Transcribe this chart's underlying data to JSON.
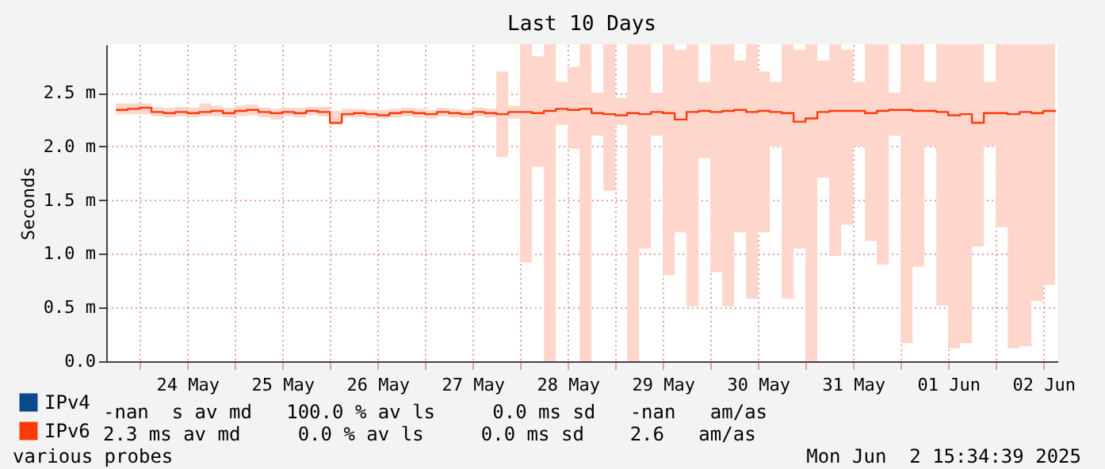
{
  "chart_data": {
    "type": "step",
    "title": "Last 10 Days",
    "ylabel": "Seconds",
    "x": [
      "2025-05-23T18:00",
      "2025-05-23T21:00",
      "2025-05-24T00:00",
      "2025-05-24T03:00",
      "2025-05-24T06:00",
      "2025-05-24T09:00",
      "2025-05-24T12:00",
      "2025-05-24T15:00",
      "2025-05-24T18:00",
      "2025-05-24T21:00",
      "2025-05-25T00:00",
      "2025-05-25T03:00",
      "2025-05-25T06:00",
      "2025-05-25T09:00",
      "2025-05-25T12:00",
      "2025-05-25T15:00",
      "2025-05-25T18:00",
      "2025-05-25T21:00",
      "2025-05-26T00:00",
      "2025-05-26T03:00",
      "2025-05-26T06:00",
      "2025-05-26T09:00",
      "2025-05-26T12:00",
      "2025-05-26T15:00",
      "2025-05-26T18:00",
      "2025-05-26T21:00",
      "2025-05-27T00:00",
      "2025-05-27T03:00",
      "2025-05-27T06:00",
      "2025-05-27T09:00",
      "2025-05-27T12:00",
      "2025-05-27T15:00",
      "2025-05-27T18:00",
      "2025-05-27T21:00",
      "2025-05-28T00:00",
      "2025-05-28T03:00",
      "2025-05-28T06:00",
      "2025-05-28T09:00",
      "2025-05-28T12:00",
      "2025-05-28T15:00",
      "2025-05-28T18:00",
      "2025-05-28T21:00",
      "2025-05-29T00:00",
      "2025-05-29T03:00",
      "2025-05-29T06:00",
      "2025-05-29T09:00",
      "2025-05-29T12:00",
      "2025-05-29T15:00",
      "2025-05-29T18:00",
      "2025-05-29T21:00",
      "2025-05-30T00:00",
      "2025-05-30T03:00",
      "2025-05-30T06:00",
      "2025-05-30T09:00",
      "2025-05-30T12:00",
      "2025-05-30T15:00",
      "2025-05-30T18:00",
      "2025-05-30T21:00",
      "2025-05-31T00:00",
      "2025-05-31T03:00",
      "2025-05-31T06:00",
      "2025-05-31T09:00",
      "2025-05-31T12:00",
      "2025-05-31T15:00",
      "2025-05-31T18:00",
      "2025-05-31T21:00",
      "2025-06-01T00:00",
      "2025-06-01T03:00",
      "2025-06-01T06:00",
      "2025-06-01T09:00",
      "2025-06-01T12:00",
      "2025-06-01T15:00",
      "2025-06-01T18:00",
      "2025-06-01T21:00",
      "2025-06-02T00:00",
      "2025-06-02T03:00",
      "2025-06-02T06:00",
      "2025-06-02T09:00",
      "2025-06-02T12:00",
      "2025-06-02T15:00"
    ],
    "series": [
      {
        "name": "IPv4",
        "color": "#0a4a8a",
        "values": [
          null,
          null,
          null,
          null,
          null,
          null,
          null,
          null,
          null,
          null,
          null,
          null,
          null,
          null,
          null,
          null,
          null,
          null,
          null,
          null,
          null,
          null,
          null,
          null,
          null,
          null,
          null,
          null,
          null,
          null,
          null,
          null,
          null,
          null,
          null,
          null,
          null,
          null,
          null,
          null,
          null,
          null,
          null,
          null,
          null,
          null,
          null,
          null,
          null,
          null,
          null,
          null,
          null,
          null,
          null,
          null,
          null,
          null,
          null,
          null,
          null,
          null,
          null,
          null,
          null,
          null,
          null,
          null,
          null,
          null,
          null,
          null,
          null,
          null,
          null,
          null,
          null,
          null,
          null,
          null
        ]
      },
      {
        "name": "IPv6",
        "color": "#ff3a0a",
        "values": [
          2.34,
          2.35,
          2.36,
          2.32,
          2.31,
          2.32,
          2.31,
          2.32,
          2.33,
          2.31,
          2.33,
          2.34,
          2.32,
          2.31,
          2.32,
          2.31,
          2.33,
          2.32,
          2.22,
          2.3,
          2.31,
          2.3,
          2.29,
          2.31,
          2.32,
          2.31,
          2.3,
          2.32,
          2.31,
          2.3,
          2.32,
          2.31,
          2.3,
          2.32,
          2.32,
          2.31,
          2.33,
          2.35,
          2.34,
          2.35,
          2.31,
          2.3,
          2.29,
          2.31,
          2.3,
          2.32,
          2.31,
          2.25,
          2.32,
          2.33,
          2.32,
          2.33,
          2.34,
          2.32,
          2.33,
          2.32,
          2.31,
          2.23,
          2.26,
          2.32,
          2.33,
          2.33,
          2.33,
          2.31,
          2.33,
          2.34,
          2.34,
          2.33,
          2.33,
          2.32,
          2.29,
          2.3,
          2.22,
          2.31,
          2.31,
          2.3,
          2.32,
          2.31,
          2.33,
          2.32
        ],
        "lower": [
          2.3,
          2.3,
          2.3,
          2.28,
          2.27,
          2.28,
          2.27,
          2.28,
          2.28,
          2.27,
          2.28,
          2.29,
          2.27,
          2.25,
          2.28,
          2.27,
          2.29,
          2.28,
          2.2,
          2.27,
          2.27,
          2.26,
          2.26,
          2.27,
          2.28,
          2.27,
          2.26,
          2.28,
          2.27,
          2.26,
          2.28,
          2.27,
          1.9,
          2.26,
          0.92,
          1.81,
          0,
          2.2,
          1.98,
          0,
          2.1,
          1.59,
          2.2,
          0,
          1.05,
          2.1,
          0.8,
          1.2,
          0.51,
          1.89,
          0.83,
          0.51,
          1.2,
          0.58,
          1.2,
          2.0,
          0.58,
          1.05,
          0,
          1.71,
          0.98,
          1.27,
          2.0,
          1.12,
          0.9,
          2.1,
          0.17,
          0.88,
          2.0,
          0.52,
          0.12,
          0.17,
          1.07,
          2.0,
          1.25,
          0.12,
          0.14,
          0.56,
          0.71,
          1.97
        ],
        "upper": [
          2.4,
          2.4,
          2.4,
          2.37,
          2.36,
          2.37,
          2.36,
          2.4,
          2.38,
          2.36,
          2.38,
          2.39,
          2.36,
          2.35,
          2.36,
          2.36,
          2.37,
          2.37,
          2.33,
          2.35,
          2.35,
          2.34,
          2.34,
          2.35,
          2.36,
          2.35,
          2.34,
          2.36,
          2.35,
          2.34,
          2.36,
          2.35,
          2.7,
          2.38,
          2.95,
          2.84,
          2.95,
          2.6,
          2.74,
          2.95,
          2.5,
          2.95,
          2.45,
          2.95,
          2.95,
          2.5,
          2.95,
          2.9,
          2.95,
          2.6,
          2.95,
          2.95,
          2.8,
          2.95,
          2.7,
          2.6,
          2.95,
          2.9,
          2.95,
          2.8,
          2.95,
          2.9,
          2.6,
          2.95,
          2.95,
          2.5,
          2.95,
          2.95,
          2.6,
          2.95,
          2.95,
          2.95,
          2.95,
          2.6,
          2.95,
          2.95,
          2.95,
          2.95,
          2.95,
          2.6
        ]
      }
    ],
    "xlim": [
      "2025-05-23T15:34",
      "2025-06-02T15:34"
    ],
    "xticks": [
      {
        "value": "2025-05-24T00:00",
        "label": null
      },
      {
        "value": "2025-05-24T12:00",
        "label": "24 May"
      },
      {
        "value": "2025-05-25T00:00",
        "label": null
      },
      {
        "value": "2025-05-25T12:00",
        "label": "25 May"
      },
      {
        "value": "2025-05-26T00:00",
        "label": null
      },
      {
        "value": "2025-05-26T12:00",
        "label": "26 May"
      },
      {
        "value": "2025-05-27T00:00",
        "label": null
      },
      {
        "value": "2025-05-27T12:00",
        "label": "27 May"
      },
      {
        "value": "2025-05-28T00:00",
        "label": null
      },
      {
        "value": "2025-05-28T12:00",
        "label": "28 May"
      },
      {
        "value": "2025-05-29T00:00",
        "label": null
      },
      {
        "value": "2025-05-29T12:00",
        "label": "29 May"
      },
      {
        "value": "2025-05-30T00:00",
        "label": null
      },
      {
        "value": "2025-05-30T12:00",
        "label": "30 May"
      },
      {
        "value": "2025-05-31T00:00",
        "label": null
      },
      {
        "value": "2025-05-31T12:00",
        "label": "31 May"
      },
      {
        "value": "2025-06-01T00:00",
        "label": null
      },
      {
        "value": "2025-06-01T12:00",
        "label": "01 Jun"
      },
      {
        "value": "2025-06-02T00:00",
        "label": null
      },
      {
        "value": "2025-06-02T12:00",
        "label": "02 Jun"
      }
    ],
    "ylim": [
      0,
      2.95
    ],
    "yticks": [
      {
        "value": 0,
        "label": "0.0"
      },
      {
        "value": 0.5,
        "label": "0.5 m"
      },
      {
        "value": 1,
        "label": "1.0 m"
      },
      {
        "value": 1.5,
        "label": "1.5 m"
      },
      {
        "value": 2,
        "label": "2.0 m"
      },
      {
        "value": 2.5,
        "label": "2.5 m"
      }
    ],
    "grid": true,
    "legend": "bottom left",
    "marker": "none",
    "line_style": "solid",
    "annotations": [
      "-nan  s av md   100.0 % av ls     0.0 ms sd   -nan   am/as",
      "2.3 ms av md     0.0 % av ls     0.0 ms sd    2.6   am/as",
      "various probes",
      "Mon Jun  2 15:34:39 2025"
    ]
  }
}
